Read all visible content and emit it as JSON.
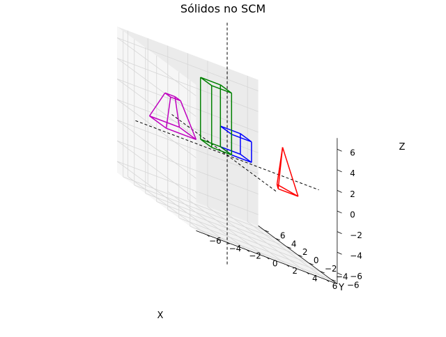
{
  "chart_data": {
    "type": "3d-wireframe",
    "title": "Sólidos no SCM",
    "xlabel": "X",
    "ylabel": "Y",
    "zlabel": "Z",
    "xlim": [
      -6,
      6
    ],
    "ylim": [
      -6,
      6
    ],
    "zlim": [
      -6,
      6
    ],
    "xticks": [
      "−6",
      "−4",
      "−2",
      "0",
      "2",
      "4",
      "6"
    ],
    "yticks": [
      "−6",
      "−4",
      "−2",
      "0",
      "2",
      "4",
      "6"
    ],
    "zticks": [
      "−6",
      "−4",
      "−2",
      "0",
      "2",
      "4",
      "6"
    ],
    "grid": true,
    "reference_axes": {
      "style": "dashed",
      "color": "#000000",
      "extent": [
        -6,
        6
      ]
    },
    "solids": [
      {
        "shape": "cube",
        "color": "#0000ff",
        "vertices": [
          [
            1,
            1,
            0
          ],
          [
            3,
            1,
            0
          ],
          [
            3,
            3,
            0
          ],
          [
            1,
            3,
            0
          ],
          [
            1,
            1,
            2
          ],
          [
            3,
            1,
            2
          ],
          [
            3,
            3,
            2
          ],
          [
            1,
            3,
            2
          ]
        ],
        "edges": [
          [
            0,
            1
          ],
          [
            1,
            2
          ],
          [
            2,
            3
          ],
          [
            3,
            0
          ],
          [
            4,
            5
          ],
          [
            5,
            6
          ],
          [
            6,
            7
          ],
          [
            7,
            4
          ],
          [
            0,
            4
          ],
          [
            1,
            5
          ],
          [
            2,
            6
          ],
          [
            3,
            7
          ]
        ]
      },
      {
        "shape": "rectangular-prism",
        "color": "#008000",
        "vertices": [
          [
            -1,
            1,
            0
          ],
          [
            1,
            1,
            0
          ],
          [
            1,
            3,
            0
          ],
          [
            -1,
            3,
            0
          ],
          [
            -1,
            1,
            6
          ],
          [
            1,
            1,
            6
          ],
          [
            1,
            3,
            6
          ],
          [
            -1,
            3,
            6
          ]
        ],
        "edges": [
          [
            0,
            1
          ],
          [
            1,
            2
          ],
          [
            2,
            3
          ],
          [
            3,
            0
          ],
          [
            4,
            5
          ],
          [
            5,
            6
          ],
          [
            6,
            7
          ],
          [
            7,
            4
          ],
          [
            0,
            4
          ],
          [
            1,
            5
          ],
          [
            2,
            6
          ],
          [
            3,
            7
          ]
        ]
      },
      {
        "shape": "pyramid",
        "color": "#ff0000",
        "vertices": [
          [
            4,
            -2,
            -1
          ],
          [
            6,
            -2,
            -1
          ],
          [
            5,
            0,
            -1
          ],
          [
            5,
            -1,
            3
          ]
        ],
        "edges": [
          [
            0,
            1
          ],
          [
            1,
            2
          ],
          [
            2,
            0
          ],
          [
            0,
            3
          ],
          [
            1,
            3
          ],
          [
            2,
            3
          ]
        ]
      },
      {
        "shape": "frustum",
        "color": "#bf00bf",
        "vertices": [
          [
            -5,
            2,
            0
          ],
          [
            -2,
            2,
            0
          ],
          [
            -2,
            5,
            0
          ],
          [
            -5,
            5,
            0
          ],
          [
            -4,
            3,
            3
          ],
          [
            -3,
            3,
            3
          ],
          [
            -3,
            4,
            3
          ],
          [
            -4,
            4,
            3
          ]
        ],
        "edges": [
          [
            0,
            1
          ],
          [
            1,
            2
          ],
          [
            2,
            3
          ],
          [
            3,
            0
          ],
          [
            4,
            5
          ],
          [
            5,
            6
          ],
          [
            6,
            7
          ],
          [
            7,
            4
          ],
          [
            0,
            4
          ],
          [
            1,
            5
          ],
          [
            2,
            6
          ],
          [
            3,
            7
          ]
        ]
      }
    ]
  }
}
